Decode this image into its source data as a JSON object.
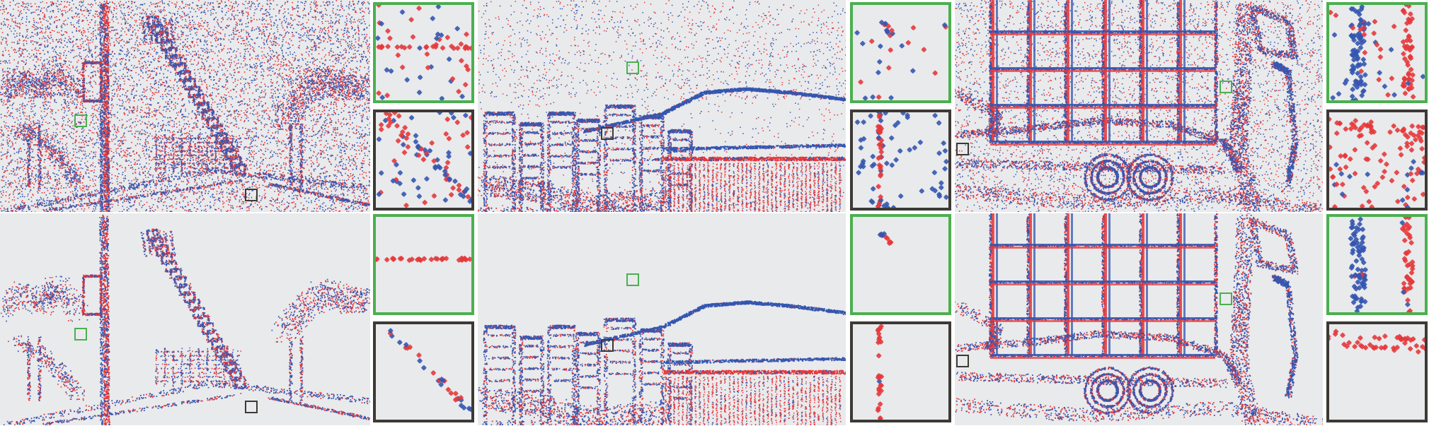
{
  "figure": {
    "rows": [
      "top",
      "bottom"
    ],
    "scenes": [
      "street",
      "city-skyline",
      "checkerboard-car"
    ],
    "colors": {
      "background": "#e9eaec",
      "positive_event": "#e5383b",
      "negative_event": "#3456b0",
      "green_box": "#4caf50",
      "dark_box": "#3d3a36"
    }
  }
}
